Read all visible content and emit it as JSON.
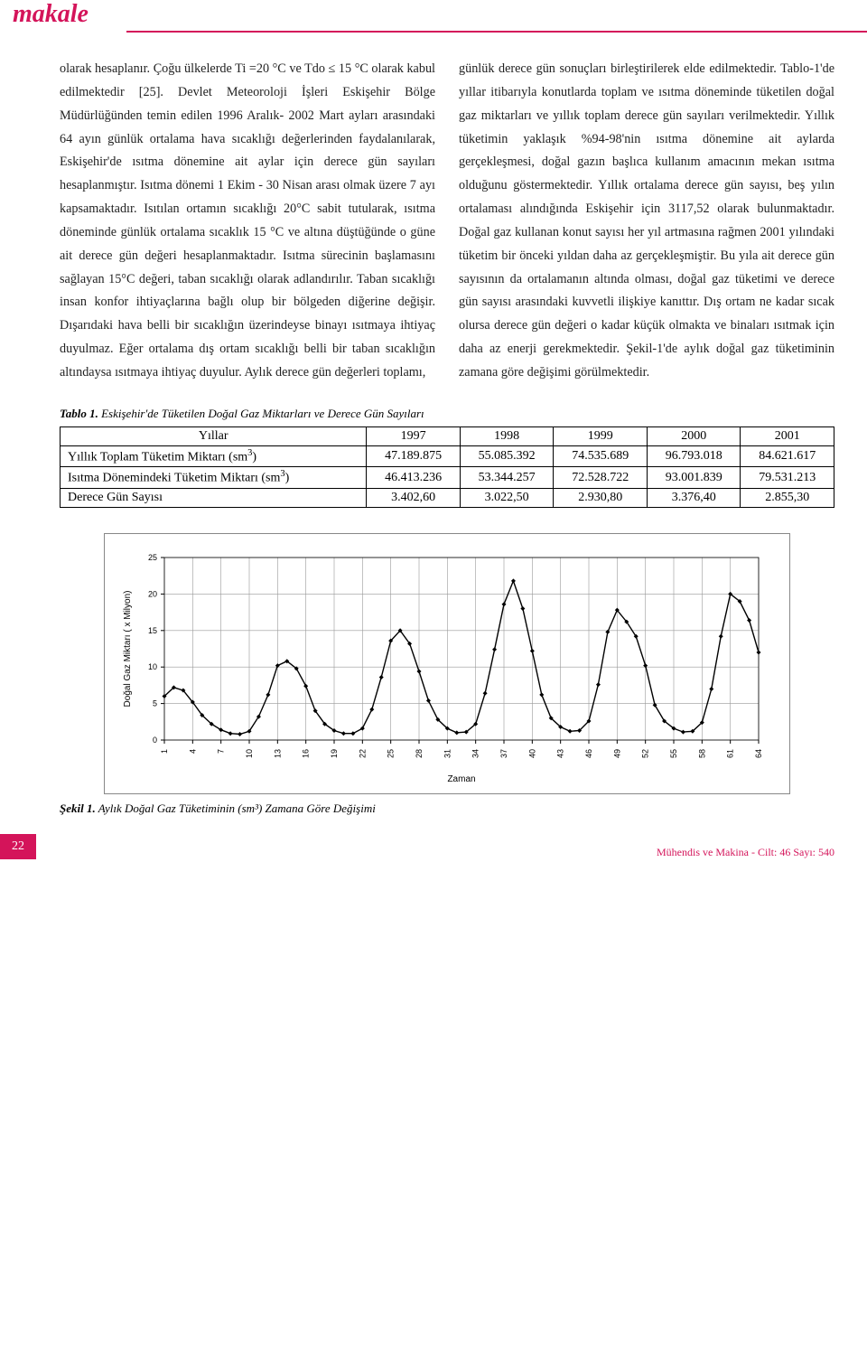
{
  "header": {
    "title": "makale"
  },
  "body": {
    "left": "olarak hesaplanır. Çoğu ülkelerde Ti =20 °C ve Tdo ≤ 15 °C olarak kabul edilmektedir [25]. Devlet Meteoroloji İşleri Eskişehir Bölge Müdürlüğünden temin edilen 1996 Aralık- 2002 Mart ayları arasındaki 64 ayın günlük ortalama hava sıcaklığı değerlerinden faydalanılarak, Eskişehir'de ısıtma dönemine ait aylar için derece gün sayıları hesaplanmıştır. Isıtma dönemi 1 Ekim - 30 Nisan arası olmak üzere 7 ayı kapsamaktadır. Isıtılan ortamın sıcaklığı 20°C sabit tutularak, ısıtma döneminde günlük ortalama sıcaklık 15 °C ve altına düştüğünde o güne ait derece gün değeri hesaplanmaktadır. Isıtma sürecinin başlamasını sağlayan 15°C değeri, taban sıcaklığı olarak adlandırılır. Taban sıcaklığı insan konfor ihtiyaçlarına bağlı olup bir bölgeden diğerine değişir. Dışarıdaki hava belli bir sıcaklığın üzerindeyse binayı ısıtmaya ihtiyaç duyulmaz. Eğer ortalama dış ortam sıcaklığı belli bir taban sıcaklığın altındaysa ısıtmaya ihtiyaç duyulur. Aylık derece gün değerleri toplamı,",
    "right": "günlük derece gün sonuçları birleştirilerek elde edilmektedir.\n    Tablo-1'de yıllar itibarıyla konutlarda toplam ve ısıtma döneminde tüketilen doğal gaz miktarları ve yıllık toplam derece gün sayıları verilmektedir. Yıllık tüketimin yaklaşık %94-98'nin ısıtma dönemine ait aylarda gerçekleşmesi, doğal gazın başlıca kullanım amacının mekan ısıtma olduğunu göstermektedir.\n    Yıllık ortalama derece gün sayısı, beş yılın ortalaması alındığında Eskişehir için 3117,52 olarak bulunmaktadır. Doğal gaz kullanan konut sayısı her yıl artmasına rağmen 2001 yılındaki tüketim bir önceki yıldan daha az gerçekleşmiştir. Bu yıla ait derece gün sayısının da ortalamanın altında olması, doğal gaz tüketimi ve derece gün sayısı arasındaki kuvvetli ilişkiye kanıttır. Dış ortam ne kadar sıcak olursa derece gün değeri o kadar küçük olmakta ve binaları ısıtmak için daha az enerji gerekmektedir. Şekil-1'de aylık doğal gaz tüketiminin zamana göre değişimi görülmektedir."
  },
  "table": {
    "caption_bold": "Tablo 1.",
    "caption_rest": " Eskişehir'de Tüketilen Doğal Gaz Miktarları ve Derece Gün Sayıları",
    "header": [
      "Yıllar",
      "1997",
      "1998",
      "1999",
      "2000",
      "2001"
    ],
    "rows": [
      {
        "label": "Yıllık Toplam Tüketim Miktarı (sm³)",
        "cells": [
          "47.189.875",
          "55.085.392",
          "74.535.689",
          "96.793.018",
          "84.621.617"
        ]
      },
      {
        "label": "Isıtma Dönemindeki Tüketim Miktarı (sm³)",
        "cells": [
          "46.413.236",
          "53.344.257",
          "72.528.722",
          "93.001.839",
          "79.531.213"
        ]
      },
      {
        "label": "Derece Gün Sayısı",
        "cells": [
          "3.402,60",
          "3.022,50",
          "2.930,80",
          "3.376,40",
          "2.855,30"
        ]
      }
    ]
  },
  "chart": {
    "type": "line",
    "x_label": "Zaman",
    "y_label": "Doğal Gaz Miktarı ( x Milyon)",
    "x_ticks": [
      1,
      4,
      7,
      10,
      13,
      16,
      19,
      22,
      25,
      28,
      31,
      34,
      37,
      40,
      43,
      46,
      49,
      52,
      55,
      58,
      61,
      64
    ],
    "y_ticks": [
      0,
      5,
      10,
      15,
      20,
      25
    ],
    "ylim": [
      0,
      25
    ],
    "label_fontsize": 10,
    "tick_fontsize": 9,
    "line_color": "#000000",
    "marker_color": "#000000",
    "marker": "diamond",
    "marker_size": 5,
    "grid_color": "#999999",
    "background_color": "#ffffff",
    "values": [
      6.0,
      7.2,
      6.8,
      5.2,
      3.4,
      2.2,
      1.4,
      0.9,
      0.8,
      1.2,
      3.2,
      6.2,
      10.2,
      10.8,
      9.8,
      7.4,
      4.0,
      2.2,
      1.3,
      0.9,
      0.9,
      1.6,
      4.2,
      8.6,
      13.6,
      15.0,
      13.2,
      9.4,
      5.4,
      2.8,
      1.6,
      1.0,
      1.1,
      2.2,
      6.4,
      12.4,
      18.6,
      21.8,
      18.0,
      12.2,
      6.2,
      3.0,
      1.8,
      1.2,
      1.3,
      2.6,
      7.6,
      14.8,
      17.8,
      16.2,
      14.2,
      10.2,
      4.8,
      2.6,
      1.6,
      1.1,
      1.2,
      2.4,
      7.0,
      14.2,
      20.0,
      19.0,
      16.4,
      12.0
    ]
  },
  "figure": {
    "caption_bold": "Şekil 1.",
    "caption_rest": " Aylık Doğal Gaz Tüketiminin (sm³) Zamana Göre Değişimi"
  },
  "footer": {
    "page": "22",
    "right": "Mühendis ve Makina - Cilt: 46 Sayı: 540"
  },
  "colors": {
    "accent": "#d4145a"
  }
}
